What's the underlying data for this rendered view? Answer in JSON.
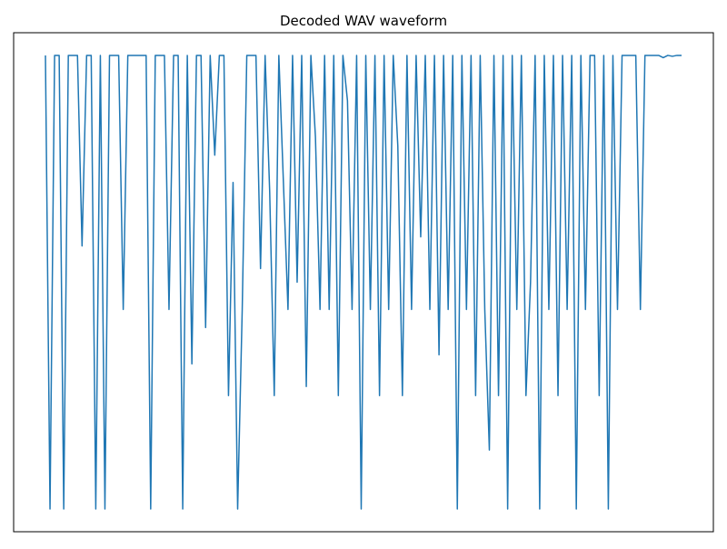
{
  "chart_data": {
    "type": "line",
    "title": "Decoded WAV waveform",
    "series": [
      {
        "color": "#1f77b4",
        "values": [
          1,
          0,
          1,
          1,
          0,
          1,
          1,
          1,
          0.58,
          1,
          1,
          0,
          1,
          0,
          1,
          1,
          1,
          0.44,
          1,
          1,
          1,
          1,
          1,
          0,
          1,
          1,
          1,
          0.44,
          1,
          1,
          0,
          1,
          0.32,
          1,
          1,
          0.4,
          1,
          0.78,
          1,
          1,
          0.25,
          0.72,
          0,
          0.44,
          1,
          1,
          1,
          0.53,
          1,
          0.7,
          0.25,
          1,
          0.72,
          0.44,
          1,
          0.5,
          1,
          0.27,
          1,
          0.82,
          0.44,
          1,
          0.44,
          1,
          0.25,
          1,
          0.9,
          0.44,
          1,
          0,
          1,
          0.44,
          1,
          0.25,
          1,
          0.44,
          1,
          0.8,
          0.25,
          1,
          0.44,
          1,
          0.6,
          1,
          0.44,
          1,
          0.34,
          1,
          0.44,
          1,
          0,
          1,
          0.44,
          1,
          0.25,
          1,
          0.44,
          0.13,
          1,
          0.25,
          1,
          0,
          1,
          0.44,
          1,
          0.25,
          0.5,
          1,
          0,
          1,
          0.44,
          1,
          0.25,
          1,
          0.44,
          1,
          0,
          1,
          0.44,
          1,
          1,
          0.25,
          1,
          0,
          1,
          0.44,
          1,
          1,
          1,
          1,
          0.44,
          1,
          1,
          1,
          1,
          0.995,
          1,
          0.998,
          1,
          1
        ]
      }
    ],
    "ylim": [
      -0.05,
      1.05
    ]
  }
}
